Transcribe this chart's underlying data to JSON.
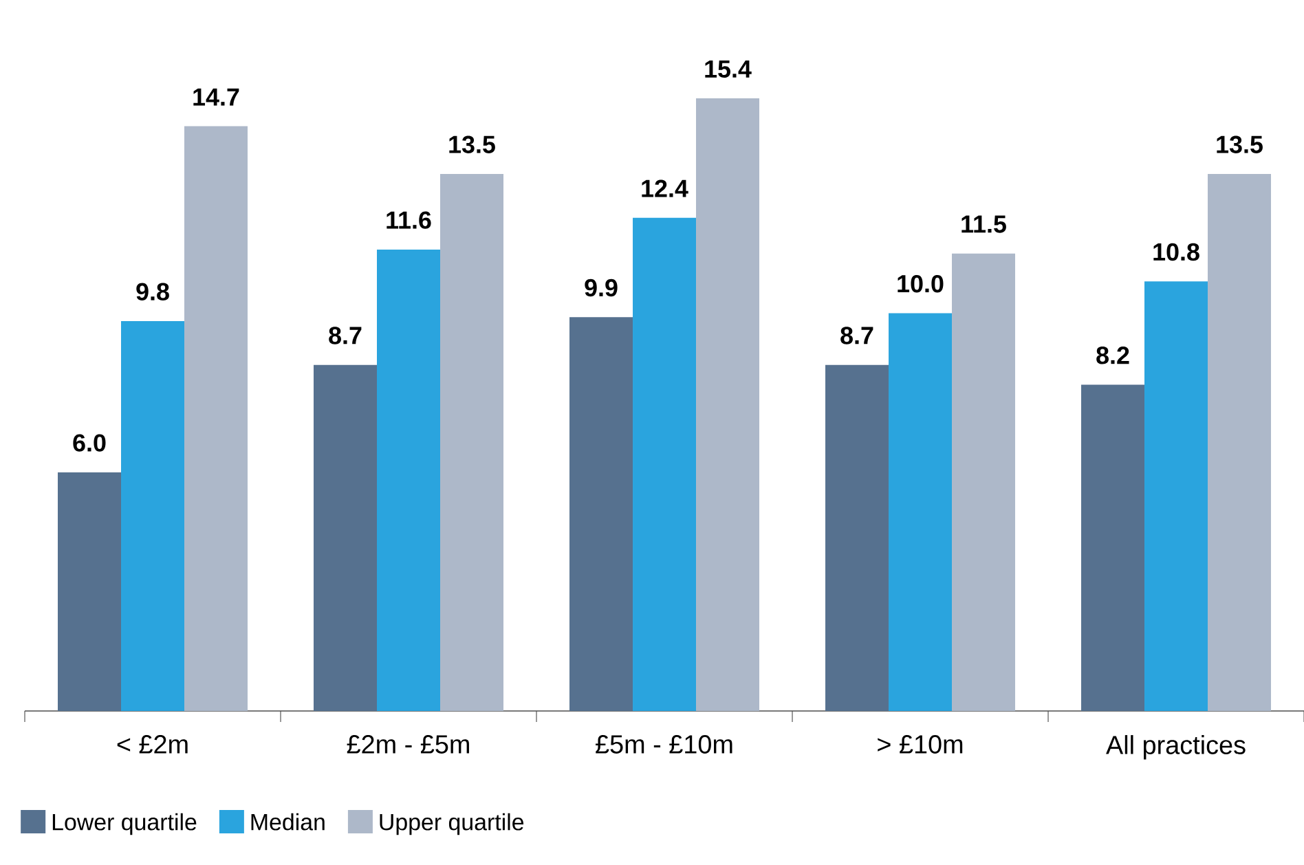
{
  "chart_data": {
    "type": "bar",
    "categories": [
      "< £2m",
      "£2m - £5m",
      "£5m - £10m",
      "> £10m",
      "All practices"
    ],
    "series": [
      {
        "name": "Lower quartile",
        "color": "#56718f",
        "values": [
          6.0,
          8.7,
          9.9,
          8.7,
          8.2
        ],
        "value_labels": [
          "6.0",
          "8.7",
          "9.9",
          "8.7",
          "8.2"
        ]
      },
      {
        "name": "Median",
        "color": "#2aa4de",
        "values": [
          9.8,
          11.6,
          12.4,
          10.0,
          10.8
        ],
        "value_labels": [
          "9.8",
          "11.6",
          "12.4",
          "10.0",
          "10.8"
        ]
      },
      {
        "name": "Upper quartile",
        "color": "#adb8c9",
        "values": [
          14.7,
          13.5,
          15.4,
          11.5,
          13.5
        ],
        "value_labels": [
          "14.7",
          "13.5",
          "15.4",
          "11.5",
          "13.5"
        ]
      }
    ],
    "legend": "bottom left"
  }
}
